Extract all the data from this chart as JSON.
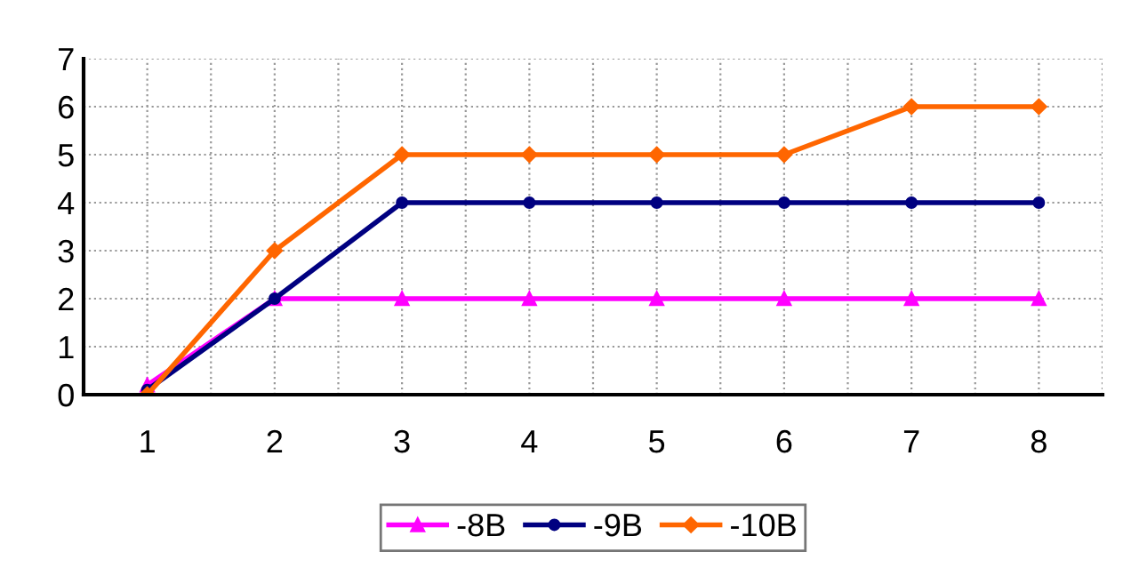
{
  "chart_data": {
    "type": "line",
    "categories": [
      "1",
      "2",
      "3",
      "4",
      "5",
      "6",
      "7",
      "8"
    ],
    "series": [
      {
        "name": "-8B",
        "color": "#ff00ff",
        "marker": "triangle",
        "values": [
          0.2,
          2,
          2,
          2,
          2,
          2,
          2,
          2
        ]
      },
      {
        "name": "-9B",
        "color": "#000080",
        "marker": "circle",
        "values": [
          0.1,
          2,
          4,
          4,
          4,
          4,
          4,
          4
        ]
      },
      {
        "name": "-10B",
        "color": "#ff6600",
        "marker": "diamond",
        "values": [
          0,
          3,
          5,
          5,
          5,
          5,
          6,
          6
        ]
      }
    ],
    "ylim": [
      0,
      7
    ],
    "yticks": [
      0,
      1,
      2,
      3,
      4,
      5,
      6,
      7
    ],
    "grid": true,
    "legend": "bottom",
    "line_style": "solid"
  }
}
